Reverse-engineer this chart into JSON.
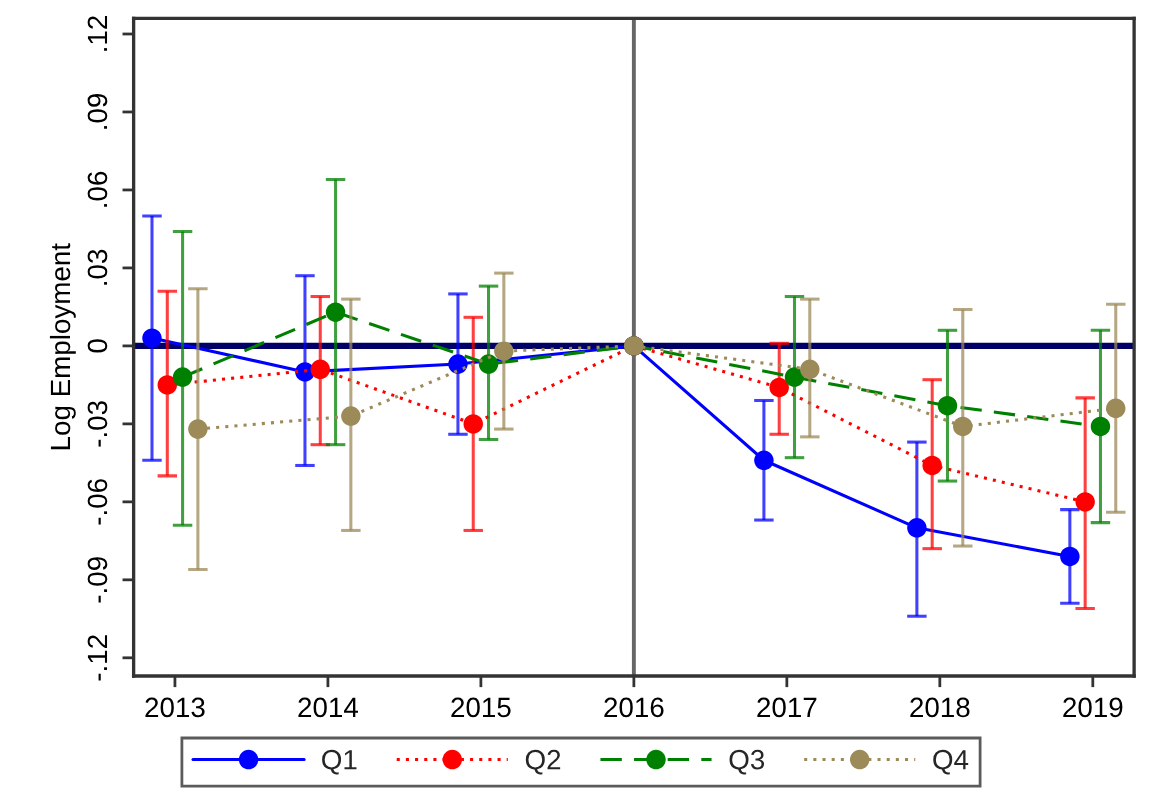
{
  "chart_data": {
    "type": "line",
    "ylabel": "Log Employment",
    "xlim": [
      2012.73,
      2019.27
    ],
    "xticks": [
      2013,
      2014,
      2015,
      2016,
      2017,
      2018,
      2019
    ],
    "ylim": [
      -0.127,
      0.126
    ],
    "yticks": [
      {
        "value": -0.12,
        "label": "-.12"
      },
      {
        "value": -0.09,
        "label": "-.09"
      },
      {
        "value": -0.06,
        "label": "-.06"
      },
      {
        "value": -0.03,
        "label": "-.03"
      },
      {
        "value": 0,
        "label": "0"
      },
      {
        "value": 0.03,
        "label": ".03"
      },
      {
        "value": 0.06,
        "label": ".06"
      },
      {
        "value": 0.09,
        "label": ".09"
      },
      {
        "value": 0.12,
        "label": ".12"
      }
    ],
    "grid": false,
    "legend": "bottom",
    "marker": "circle",
    "ref_lines": [
      {
        "axis": "y",
        "value": 0,
        "color": "#000066"
      },
      {
        "axis": "x",
        "value": 2016,
        "color": "#666666"
      }
    ],
    "series": [
      {
        "name": "Q1",
        "color": "#0000ff",
        "line_style": "solid",
        "x": [
          2012.85,
          2013.85,
          2014.85,
          2016,
          2016.85,
          2017.85,
          2018.85
        ],
        "values": [
          0.003,
          -0.01,
          -0.007,
          0,
          -0.044,
          -0.07,
          -0.081
        ],
        "errors": [
          [
            -0.044,
            0.05
          ],
          [
            -0.046,
            0.027
          ],
          [
            -0.034,
            0.02
          ],
          null,
          [
            -0.067,
            -0.021
          ],
          [
            -0.104,
            -0.037
          ],
          [
            -0.099,
            -0.063
          ]
        ]
      },
      {
        "name": "Q2",
        "color": "#ff0000",
        "line_style": "dotted",
        "x": [
          2012.95,
          2013.95,
          2014.95,
          2016,
          2016.95,
          2017.95,
          2018.95
        ],
        "values": [
          -0.015,
          -0.009,
          -0.03,
          0,
          -0.016,
          -0.046,
          -0.06
        ],
        "errors": [
          [
            -0.05,
            0.021
          ],
          [
            -0.038,
            0.019
          ],
          [
            -0.071,
            0.011
          ],
          null,
          [
            -0.034,
            0.001
          ],
          [
            -0.078,
            -0.013
          ],
          [
            -0.101,
            -0.02
          ]
        ]
      },
      {
        "name": "Q3",
        "color": "#008000",
        "line_style": "dashed",
        "x": [
          2013.05,
          2014.05,
          2015.05,
          2016,
          2017.05,
          2018.05,
          2019.05
        ],
        "values": [
          -0.012,
          0.013,
          -0.007,
          0,
          -0.012,
          -0.023,
          -0.031
        ],
        "errors": [
          [
            -0.069,
            0.044
          ],
          [
            -0.038,
            0.064
          ],
          [
            -0.036,
            0.023
          ],
          null,
          [
            -0.043,
            0.019
          ],
          [
            -0.052,
            0.006
          ],
          [
            -0.068,
            0.006
          ]
        ]
      },
      {
        "name": "Q4",
        "color": "#9c8a58",
        "line_style": "dotted",
        "x": [
          2013.15,
          2014.15,
          2015.15,
          2016,
          2017.15,
          2018.15,
          2019.15
        ],
        "values": [
          -0.032,
          -0.027,
          -0.002,
          0,
          -0.009,
          -0.031,
          -0.024
        ],
        "errors": [
          [
            -0.086,
            0.022
          ],
          [
            -0.071,
            0.018
          ],
          [
            -0.032,
            0.028
          ],
          null,
          [
            -0.035,
            0.018
          ],
          [
            -0.077,
            0.014
          ],
          [
            -0.064,
            0.016
          ]
        ]
      }
    ]
  }
}
